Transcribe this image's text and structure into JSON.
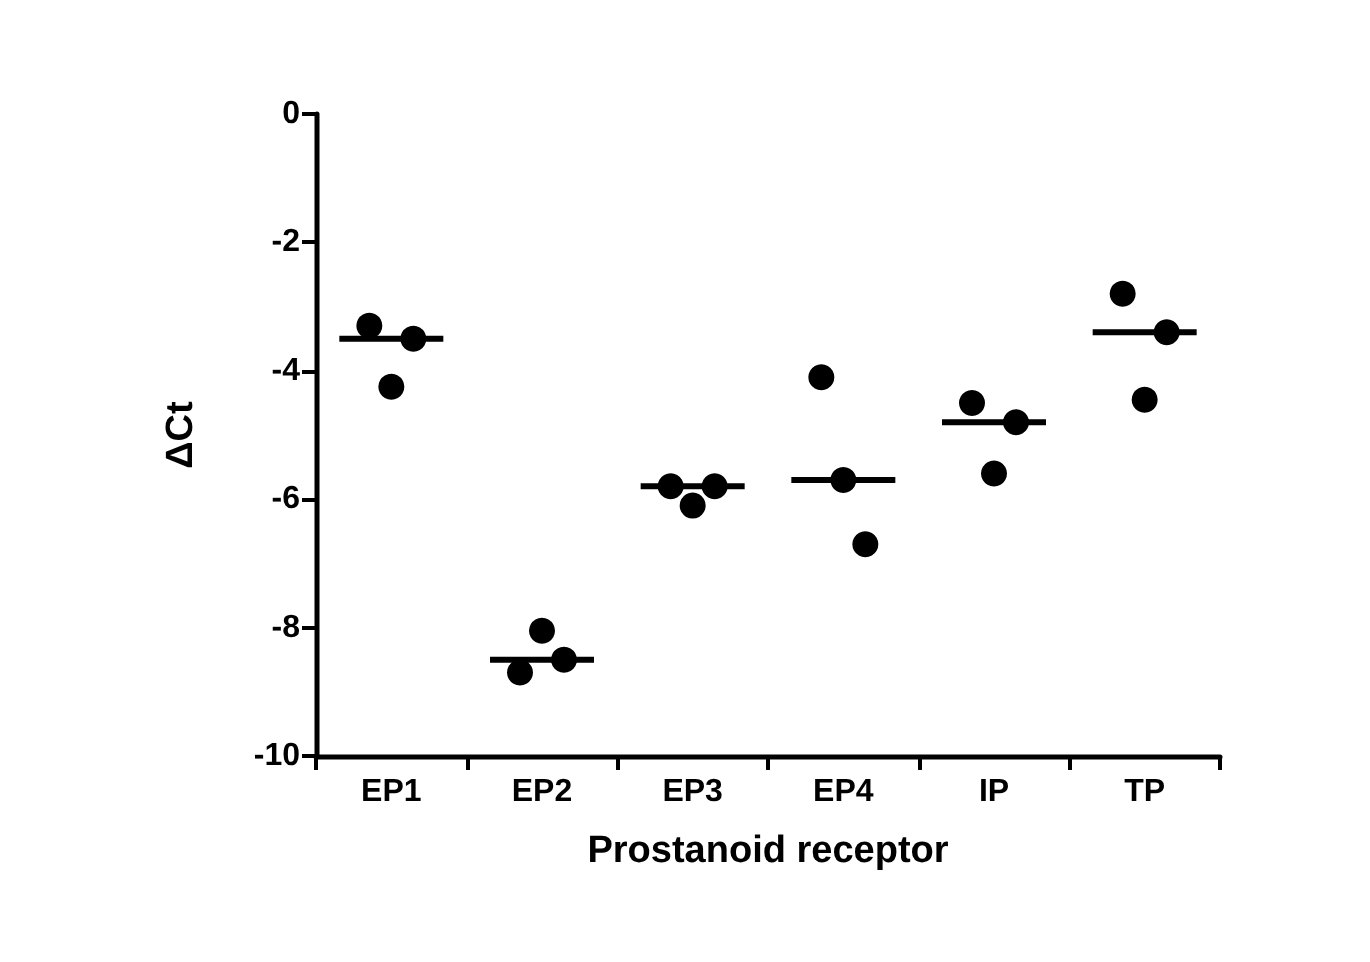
{
  "chart_data": {
    "type": "scatter",
    "xlabel": "Prostanoid receptor",
    "ylabel": "ΔCt",
    "categories": [
      "EP1",
      "EP2",
      "EP3",
      "EP4",
      "IP",
      "TP"
    ],
    "ylim": [
      -10,
      0
    ],
    "yticks": [
      -10,
      -8,
      -6,
      -4,
      -2,
      0
    ],
    "grid": false,
    "marker": "circle",
    "series": [
      {
        "color": "#000000",
        "values": [
          -3.3,
          -8.7,
          -5.8,
          -4.1,
          -4.5,
          -2.8
        ]
      },
      {
        "color": "#000000",
        "values": [
          -4.25,
          -8.05,
          -6.1,
          -5.7,
          -5.6,
          -4.45
        ]
      },
      {
        "color": "#000000",
        "values": [
          -3.5,
          -8.5,
          -5.8,
          -6.7,
          -4.8,
          -3.4
        ]
      },
      {
        "type": "box",
        "color": "#000000",
        "boxes": [
          {
            "low": -3.5,
            "q1": -3.5,
            "median": -3.5,
            "q3": -3.5,
            "high": -3.5
          },
          {
            "low": -8.5,
            "q1": -8.5,
            "median": -8.5,
            "q3": -8.5,
            "high": -8.5
          },
          {
            "low": -5.8,
            "q1": -5.8,
            "median": -5.8,
            "q3": -5.8,
            "high": -5.8
          },
          {
            "low": -5.7,
            "q1": -5.7,
            "median": -5.7,
            "q3": -5.7,
            "high": -5.7
          },
          {
            "low": -4.8,
            "q1": -4.8,
            "median": -4.8,
            "q3": -4.8,
            "high": -4.8
          },
          {
            "low": -3.4,
            "q1": -3.4,
            "median": -3.4,
            "q3": -3.4,
            "high": -3.4
          }
        ]
      }
    ]
  }
}
